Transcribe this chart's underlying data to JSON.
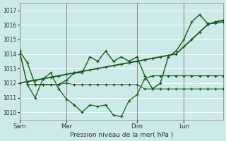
{
  "xlabel": "Pression niveau de la mer( hPa )",
  "bg_color": "#cceae8",
  "grid_color": "#aad4d0",
  "line_color": "#1a5c1a",
  "ylim": [
    1009.5,
    1017.5
  ],
  "yticks": [
    1010,
    1011,
    1012,
    1013,
    1014,
    1015,
    1016,
    1017
  ],
  "xtick_labels": [
    "Sam",
    "Mar",
    "Dim",
    "Lun"
  ],
  "xtick_positions": [
    0,
    6,
    15,
    21
  ],
  "vline_positions": [
    0,
    6,
    15,
    21
  ],
  "n_points": 27,
  "series_wavy": [
    1014.2,
    1013.4,
    1011.9,
    1011.9,
    1011.9,
    1011.9,
    1012.2,
    1012.7,
    1012.7,
    1013.8,
    1013.5,
    1014.2,
    1013.5,
    1013.8,
    1013.5,
    1013.8,
    1012.5,
    1011.6,
    1012.0,
    1013.8,
    1014.2,
    1015.0,
    1016.2,
    1016.7,
    1016.1,
    1016.1,
    1016.2
  ],
  "series_flat": [
    1014.2,
    1011.9,
    1011.9,
    1011.9,
    1011.9,
    1011.9,
    1012.0,
    1011.9,
    1011.9,
    1011.9,
    1011.9,
    1011.9,
    1011.9,
    1011.9,
    1011.9,
    1011.9,
    1011.6,
    1011.6,
    1011.6,
    1011.6,
    1011.6,
    1011.6,
    1011.6,
    1011.6,
    1011.6,
    1011.6,
    1011.6
  ],
  "series_deep": [
    1014.2,
    1011.9,
    1011.0,
    1012.3,
    1012.7,
    1011.6,
    1010.9,
    1010.5,
    1010.0,
    1010.5,
    1010.4,
    1010.5,
    1009.8,
    1009.7,
    1010.8,
    1011.2,
    1012.3,
    1012.5,
    1012.5,
    1012.5,
    1012.5,
    1012.5,
    1012.5,
    1012.5,
    1012.5,
    1012.5,
    1012.5
  ],
  "series_diag": [
    1012.0,
    1012.1,
    1012.2,
    1012.3,
    1012.4,
    1012.5,
    1012.6,
    1012.7,
    1012.8,
    1012.9,
    1013.0,
    1013.1,
    1013.2,
    1013.3,
    1013.4,
    1013.5,
    1013.6,
    1013.7,
    1013.8,
    1013.9,
    1014.0,
    1014.5,
    1015.0,
    1015.5,
    1016.0,
    1016.2,
    1016.3
  ]
}
